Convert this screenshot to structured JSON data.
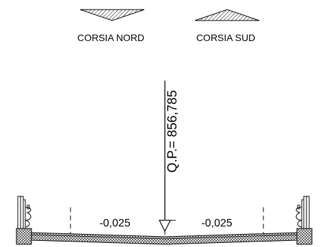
{
  "legend": {
    "north_label": "CORSIA NORD",
    "south_label": "CORSIA SUD"
  },
  "elevation": {
    "label": "Q.P.= 856,785"
  },
  "slopes": {
    "left": "-0,025",
    "right": "-0,025"
  },
  "icons": {
    "north_marker": "down-triangle-hatched-icon",
    "south_marker": "up-triangle-hatched-icon",
    "elevation_marker": "elevation-triangle-icon",
    "guardrail": "guardrail-barrier-icon"
  }
}
